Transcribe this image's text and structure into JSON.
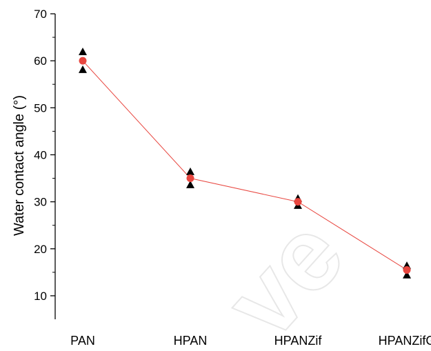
{
  "chart_data": {
    "type": "scatter",
    "ylabel": "Water contact angle (°)",
    "xlabel": "",
    "ylim": [
      5,
      70
    ],
    "yticks": [
      10,
      20,
      30,
      40,
      50,
      60,
      70
    ],
    "categories": [
      "PAN",
      "HPAN",
      "HPANZif",
      "HPANZifG"
    ],
    "series": [
      {
        "marker": "circle",
        "color": "#e8463f",
        "values": [
          60.0,
          35.0,
          30.0,
          15.5
        ],
        "connect": true
      },
      {
        "marker": "triangle",
        "color": "#000000",
        "values": [
          62.0,
          36.5,
          30.8,
          16.5
        ],
        "connect": false
      },
      {
        "marker": "triangle",
        "color": "#000000",
        "values": [
          58.2,
          33.7,
          29.3,
          14.5
        ],
        "connect": false
      }
    ],
    "grid": false,
    "line_color": "#e8463f",
    "watermark": "ve"
  }
}
